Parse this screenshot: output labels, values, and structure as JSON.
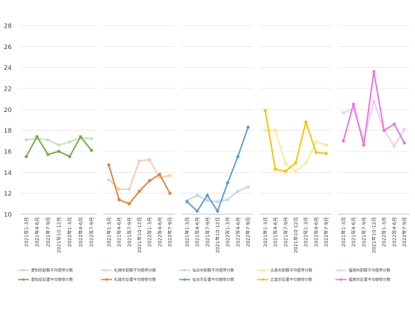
{
  "chart_data": {
    "type": "line",
    "ylim": [
      10,
      28
    ],
    "yticks": [
      10,
      12,
      14,
      16,
      18,
      20,
      22,
      24,
      26,
      28
    ],
    "grid": true,
    "legend_position": "bottom",
    "categories": [
      "2021年1-3月",
      "2021年4-6月",
      "2021年7-9月",
      "2021年10-12月",
      "2022年1-3月",
      "2022年4-6月",
      "2022年7-9月"
    ],
    "panels": [
      {
        "series": [
          {
            "name": "愛知県助鞍平均使停分数",
            "color": "#c5e0b4",
            "values": [
              17.1,
              17.2,
              17.1,
              16.6,
              16.9,
              17.3,
              17.2
            ]
          },
          {
            "name": "愛知県反響平均使停分数",
            "color": "#70ad47",
            "values": [
              15.5,
              17.4,
              15.7,
              16.0,
              15.5,
              17.4,
              16.1
            ]
          }
        ]
      },
      {
        "series": [
          {
            "name": "札幌市助鞍平均使停分数",
            "color": "#f8cbad",
            "values": [
              13.3,
              12.4,
              12.4,
              15.1,
              15.2,
              13.5,
              13.7
            ]
          },
          {
            "name": "札幌市反響平均使停分数",
            "color": "#ed7d31",
            "values": [
              14.7,
              11.4,
              11.0,
              12.2,
              13.2,
              13.8,
              12.0
            ]
          }
        ]
      },
      {
        "series": [
          {
            "name": "仙台市助鞍平均使停分数",
            "color": "#bdd7ee",
            "values": [
              11.3,
              11.8,
              11.3,
              11.2,
              11.4,
              12.2,
              12.6
            ]
          },
          {
            "name": "仙台市反響平均使停分数",
            "color": "#5b9bd5",
            "values": [
              11.2,
              10.3,
              11.8,
              10.3,
              13.0,
              15.5,
              18.3
            ]
          }
        ]
      },
      {
        "series": [
          {
            "name": "広島市助鞍平均使停分数",
            "color": "#ffe699",
            "values": [
              18.0,
              18.0,
              14.8,
              14.1,
              14.9,
              16.9,
              16.6
            ]
          },
          {
            "name": "広島市反響平均使停分数",
            "color": "#ffc000",
            "values": [
              19.9,
              14.3,
              14.1,
              14.9,
              18.8,
              15.9,
              15.8
            ]
          }
        ]
      },
      {
        "series": [
          {
            "name": "福岡市助鞍平均使停分数",
            "color": "#f6c6f6",
            "values": [
              19.7,
              20.1,
              17.1,
              20.8,
              18.0,
              16.5,
              18.1
            ]
          },
          {
            "name": "福岡市反響平均使停分数",
            "color": "#ee6ee8",
            "values": [
              17.0,
              20.5,
              16.6,
              23.6,
              18.0,
              18.6,
              16.8
            ]
          }
        ]
      }
    ]
  }
}
